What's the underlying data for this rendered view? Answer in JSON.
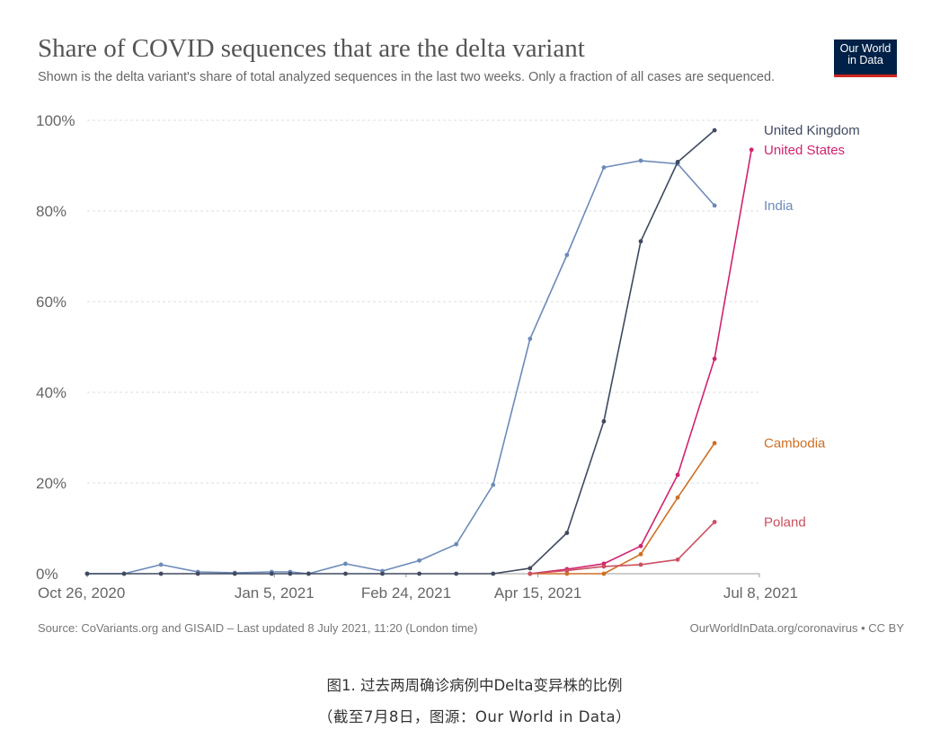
{
  "title": "Share of COVID sequences that are the delta variant",
  "subtitle": "Shown is the delta variant's share of total analyzed sequences in the last two weeks. Only a fraction of all cases are sequenced.",
  "logo": {
    "line1": "Our World",
    "line2": "in Data",
    "bg": "#002147",
    "accent": "#ce261e"
  },
  "source": "Source: CoVariants.org and GISAID – Last updated 8 July 2021, 11:20 (London time)",
  "license": "OurWorldInData.org/coronavirus • CC BY",
  "caption": {
    "line1": "图1. 过去两周确诊病例中Delta变异株的比例",
    "line2": "（截至7月8日，图源：Our World in Data）"
  },
  "chart_data": {
    "type": "line",
    "x": [
      "2020-10-26",
      "2020-11-09",
      "2020-11-23",
      "2020-12-07",
      "2020-12-21",
      "2021-01-04",
      "2021-01-11",
      "2021-01-18",
      "2021-02-01",
      "2021-02-15",
      "2021-03-01",
      "2021-03-15",
      "2021-03-29",
      "2021-04-12",
      "2021-04-26",
      "2021-05-10",
      "2021-05-24",
      "2021-06-07",
      "2021-06-21",
      "2021-07-05"
    ],
    "x_ticks": [
      {
        "date": "2020-10-26",
        "label": "Oct 26, 2020"
      },
      {
        "date": "2021-01-05",
        "label": "Jan 5, 2021"
      },
      {
        "date": "2021-02-24",
        "label": "Feb 24, 2021"
      },
      {
        "date": "2021-04-15",
        "label": "Apr 15, 2021"
      },
      {
        "date": "2021-07-08",
        "label": "Jul 8, 2021"
      }
    ],
    "x_range": [
      "2020-10-26",
      "2021-07-08"
    ],
    "y_ticks": [
      {
        "value": 0,
        "label": "0%"
      },
      {
        "value": 20,
        "label": "20%"
      },
      {
        "value": 40,
        "label": "40%"
      },
      {
        "value": 60,
        "label": "60%"
      },
      {
        "value": 80,
        "label": "80%"
      },
      {
        "value": 100,
        "label": "100%"
      }
    ],
    "ylim": [
      0,
      100
    ],
    "grid": "horizontal dashed",
    "legend": "labels at line ends",
    "series": [
      {
        "name": "India",
        "color": "#6c8ab9",
        "points": [
          [
            "2020-10-26",
            0
          ],
          [
            "2020-11-09",
            0
          ],
          [
            "2020-11-23",
            2
          ],
          [
            "2020-12-07",
            0.4
          ],
          [
            "2020-12-21",
            0.2
          ],
          [
            "2021-01-04",
            0.4
          ],
          [
            "2021-01-11",
            0.4
          ],
          [
            "2021-01-18",
            0
          ],
          [
            "2021-02-01",
            2.2
          ],
          [
            "2021-02-15",
            0.6
          ],
          [
            "2021-03-01",
            2.9
          ],
          [
            "2021-03-15",
            6.5
          ],
          [
            "2021-03-29",
            19.6
          ],
          [
            "2021-04-12",
            51.8
          ],
          [
            "2021-04-26",
            70.3
          ],
          [
            "2021-05-10",
            89.6
          ],
          [
            "2021-05-24",
            91.1
          ],
          [
            "2021-06-07",
            90.4
          ],
          [
            "2021-06-21",
            81.2
          ]
        ]
      },
      {
        "name": "United Kingdom",
        "color": "#3f4a61",
        "points": [
          [
            "2020-10-26",
            0
          ],
          [
            "2020-11-09",
            0
          ],
          [
            "2020-11-23",
            0
          ],
          [
            "2020-12-07",
            0
          ],
          [
            "2020-12-21",
            0
          ],
          [
            "2021-01-04",
            0
          ],
          [
            "2021-01-11",
            0
          ],
          [
            "2021-01-18",
            0
          ],
          [
            "2021-02-01",
            0
          ],
          [
            "2021-02-15",
            0
          ],
          [
            "2021-03-01",
            0
          ],
          [
            "2021-03-15",
            0
          ],
          [
            "2021-03-29",
            0
          ],
          [
            "2021-04-12",
            1.2
          ],
          [
            "2021-04-26",
            9
          ],
          [
            "2021-05-10",
            33.6
          ],
          [
            "2021-05-24",
            73.3
          ],
          [
            "2021-06-07",
            90.8
          ],
          [
            "2021-06-21",
            97.8
          ]
        ]
      },
      {
        "name": "United States",
        "color": "#d1236f",
        "points": [
          [
            "2021-04-12",
            0
          ],
          [
            "2021-04-26",
            1
          ],
          [
            "2021-05-10",
            2.2
          ],
          [
            "2021-05-24",
            6.1
          ],
          [
            "2021-06-07",
            21.8
          ],
          [
            "2021-06-21",
            47.4
          ],
          [
            "2021-07-05",
            93.5
          ]
        ]
      },
      {
        "name": "Cambodia",
        "color": "#cf6f24",
        "points": [
          [
            "2021-04-12",
            0
          ],
          [
            "2021-04-26",
            0
          ],
          [
            "2021-05-10",
            0
          ],
          [
            "2021-05-24",
            4.3
          ],
          [
            "2021-06-07",
            16.8
          ],
          [
            "2021-06-21",
            28.8
          ]
        ]
      },
      {
        "name": "Poland",
        "color": "#cc4f5f",
        "points": [
          [
            "2021-04-12",
            0
          ],
          [
            "2021-04-26",
            0.7
          ],
          [
            "2021-05-10",
            1.6
          ],
          [
            "2021-05-24",
            2
          ],
          [
            "2021-06-07",
            3.1
          ],
          [
            "2021-06-21",
            11.4
          ]
        ]
      }
    ]
  }
}
